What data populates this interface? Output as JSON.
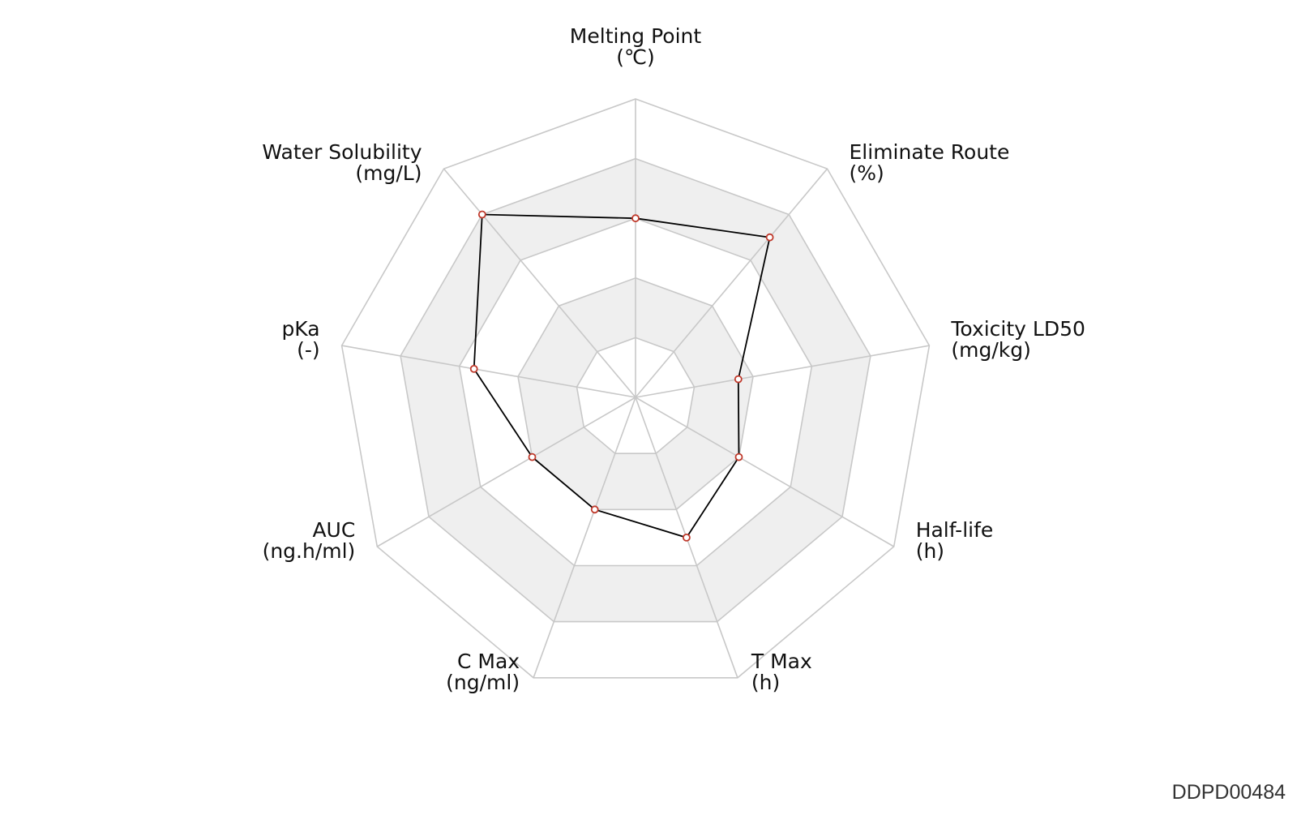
{
  "chart_data": {
    "type": "radar",
    "axes": [
      {
        "name": "Melting Point",
        "unit": "(℃)",
        "value": 0.6
      },
      {
        "name": "Eliminate Route",
        "unit": "(%)",
        "value": 0.7
      },
      {
        "name": "Toxicity LD50",
        "unit": "(mg/kg)",
        "value": 0.35
      },
      {
        "name": "Half-life",
        "unit": "(h)",
        "value": 0.4
      },
      {
        "name": "T Max",
        "unit": "(h)",
        "value": 0.5
      },
      {
        "name": "C Max",
        "unit": "(ng/ml)",
        "value": 0.4
      },
      {
        "name": "AUC",
        "unit": "(ng.h/ml)",
        "value": 0.4
      },
      {
        "name": "pKa",
        "unit": "(-)",
        "value": 0.55
      },
      {
        "name": "Water Solubility",
        "unit": "(mg/L)",
        "value": 0.8
      }
    ],
    "range": [
      0,
      1
    ],
    "rings": 5,
    "colors": {
      "band_fill": "#efefef",
      "grid_stroke": "#c8c8c8",
      "series_line": "#000000",
      "marker_stroke": "#c0392b",
      "marker_fill": "#ffffff"
    }
  },
  "footer": {
    "id_label": "DDPD00484"
  }
}
